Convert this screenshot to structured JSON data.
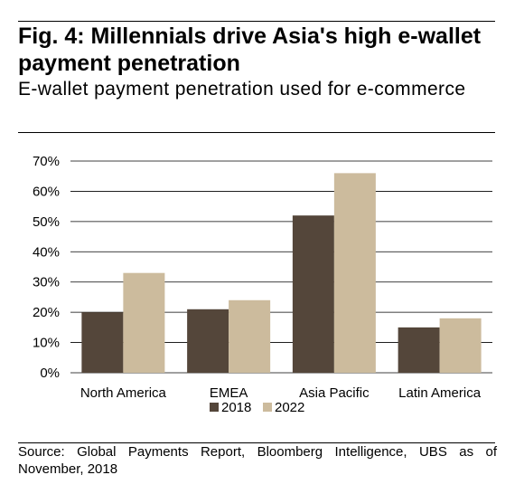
{
  "figure": {
    "title": "Fig. 4: Millennials drive Asia's high e-wallet payment penetration",
    "subtitle": "E-wallet payment penetration used for e-commerce",
    "source": "Source: Global Payments Report, Bloomberg Intelligence, UBS as of November, 2018"
  },
  "chart_data": {
    "type": "bar",
    "categories": [
      "North America",
      "EMEA",
      "Asia Pacific",
      "Latin America"
    ],
    "series": [
      {
        "name": "2018",
        "values": [
          20,
          21,
          52,
          15
        ],
        "color": "#54463A"
      },
      {
        "name": "2022",
        "values": [
          33,
          24,
          66,
          18
        ],
        "color": "#CCBB9D"
      }
    ],
    "ylim": [
      0,
      70
    ],
    "yticks": [
      0,
      10,
      20,
      30,
      40,
      50,
      60,
      70
    ],
    "ytick_labels": [
      "0%",
      "10%",
      "20%",
      "30%",
      "40%",
      "50%",
      "60%",
      "70%"
    ],
    "grid": true,
    "legend_position": "bottom-center",
    "xlabel": "",
    "ylabel": ""
  }
}
